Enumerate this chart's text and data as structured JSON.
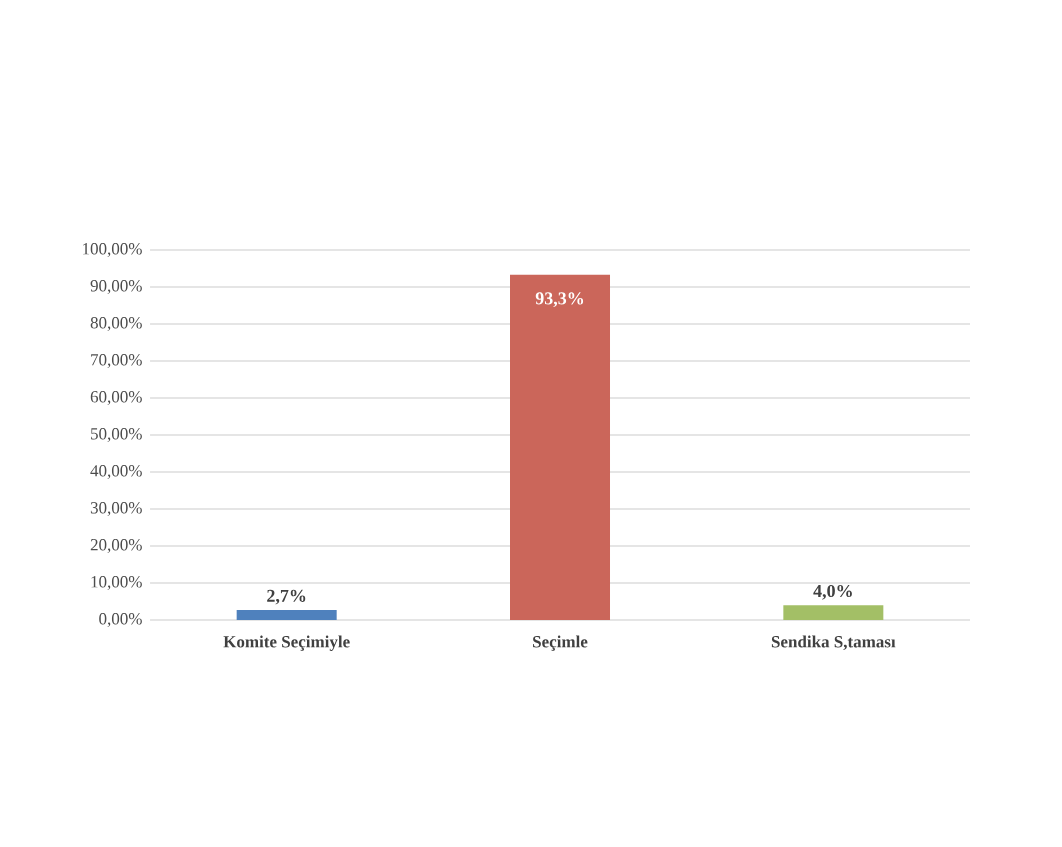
{
  "chart_data": {
    "type": "bar",
    "categories": [
      "Komite Seçimiyle",
      "Seçimle",
      "Sendika S,taması"
    ],
    "values": [
      2.7,
      93.3,
      4.0
    ],
    "colors": [
      "#4f81bd",
      "#cb665a",
      "#a3bf66"
    ],
    "value_labels": [
      "2,7%",
      "93,3%",
      "4,0%"
    ],
    "ylim": [
      0,
      100
    ],
    "yticks": [
      {
        "value": 0,
        "label": "0,00%"
      },
      {
        "value": 10,
        "label": "10,00%"
      },
      {
        "value": 20,
        "label": "20,00%"
      },
      {
        "value": 30,
        "label": "30,00%"
      },
      {
        "value": 40,
        "label": "40,00%"
      },
      {
        "value": 50,
        "label": "50,00%"
      },
      {
        "value": 60,
        "label": "60,00%"
      },
      {
        "value": 70,
        "label": "70,00%"
      },
      {
        "value": 80,
        "label": "80,00%"
      },
      {
        "value": 90,
        "label": "90,00%"
      },
      {
        "value": 100,
        "label": "100,00%"
      }
    ],
    "grid": "y"
  }
}
